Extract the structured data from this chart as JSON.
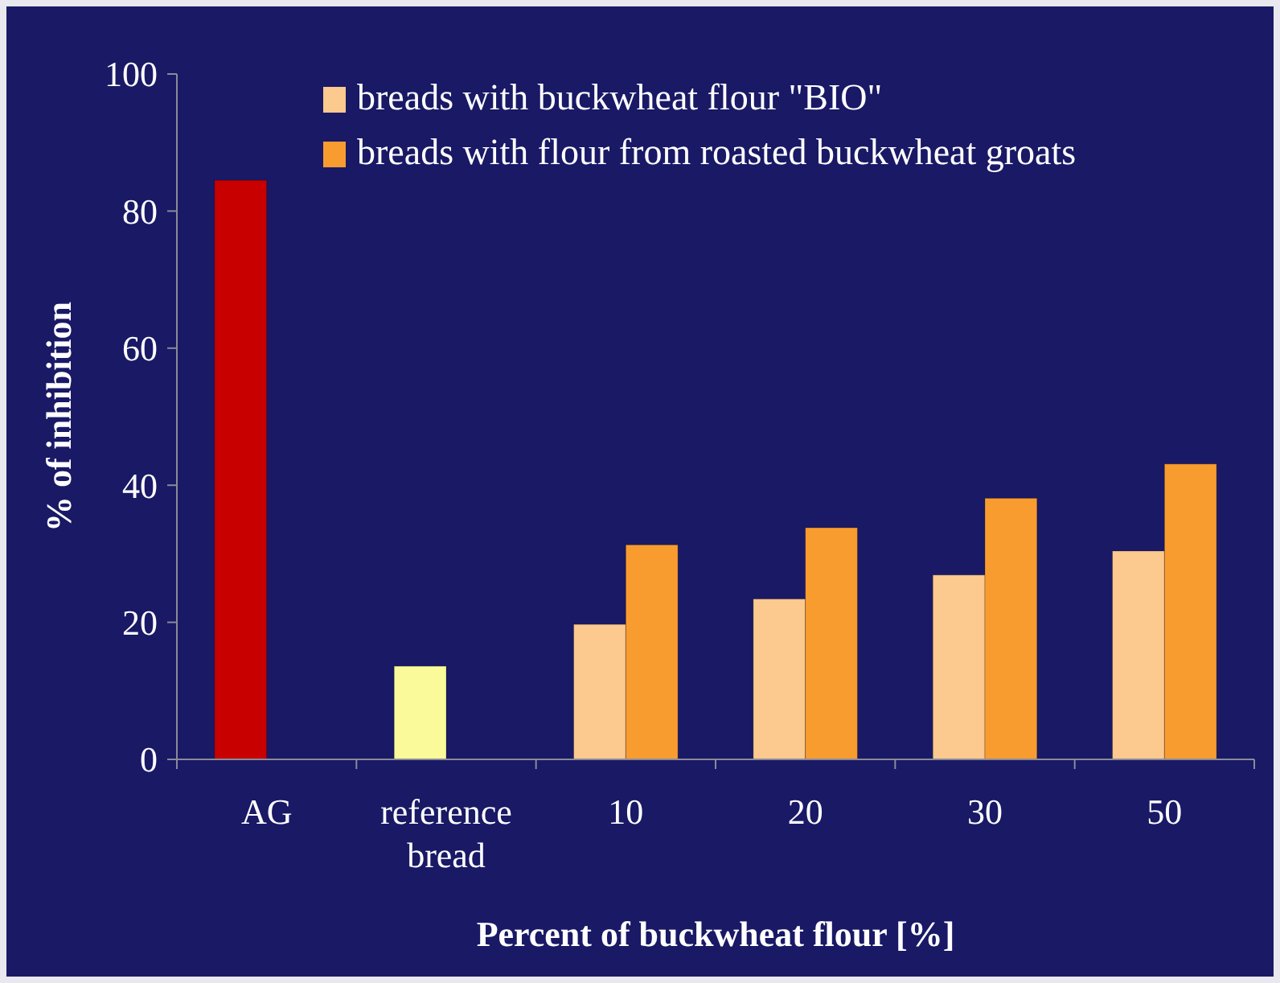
{
  "chart_data": {
    "type": "bar",
    "xlabel": "Percent of buckwheat flour [%]",
    "ylabel": "% of inhibition",
    "categories": [
      "AG",
      "reference bread",
      "10",
      "20",
      "30",
      "50"
    ],
    "series": [
      {
        "colors": [
          "#c80000",
          "#fafa9a",
          null,
          null,
          null,
          null
        ],
        "values": [
          84.5,
          13.6,
          null,
          null,
          null,
          null
        ]
      },
      {
        "name": "breads with buckwheat flour \"BIO\"",
        "color": "#fcc98e",
        "values": [
          null,
          null,
          19.7,
          23.4,
          26.9,
          30.4
        ]
      },
      {
        "name": "breads with flour from roasted buckwheat groats",
        "color": "#f99c30",
        "values": [
          null,
          null,
          31.3,
          33.8,
          38.1,
          43.1
        ]
      }
    ],
    "ylim": [
      0,
      100
    ],
    "yticks": [
      0,
      20,
      40,
      60,
      80,
      100
    ],
    "grid": false,
    "legend": "top"
  }
}
